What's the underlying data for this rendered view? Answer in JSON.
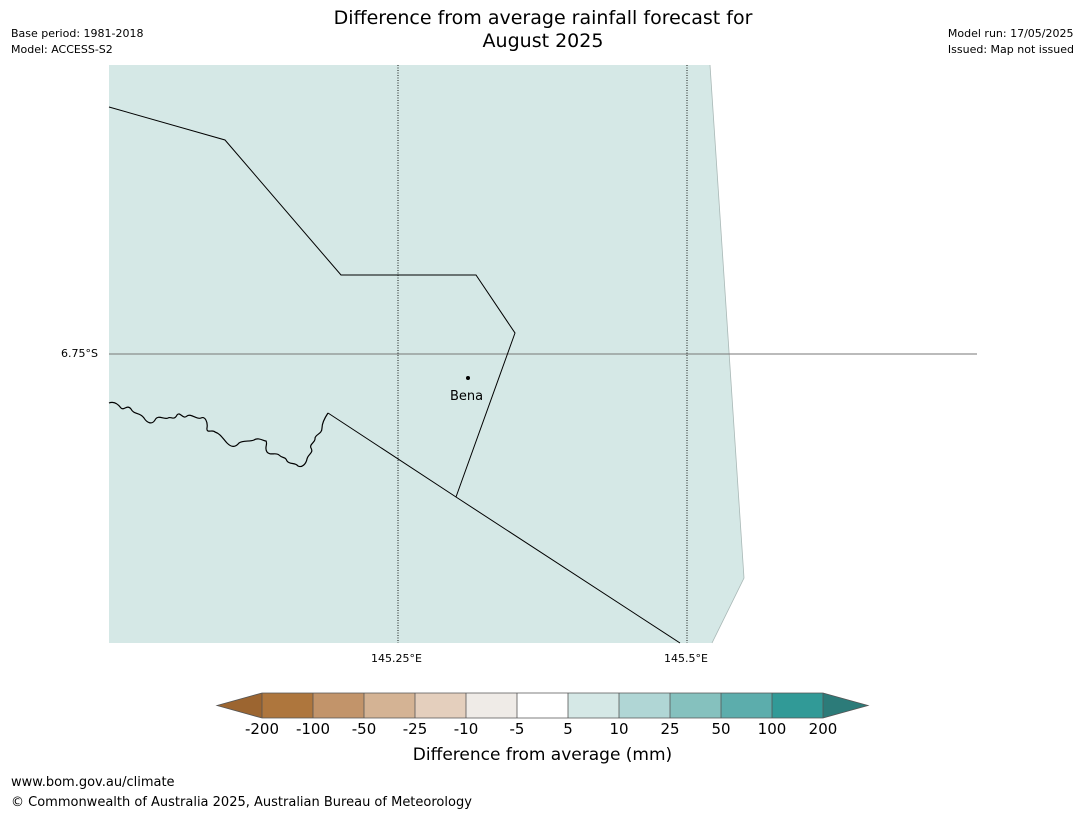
{
  "title": {
    "line1": "Difference from average rainfall forecast for",
    "line2": "August 2025"
  },
  "meta_left": {
    "base_period": "Base period: 1981-2018",
    "model": "Model: ACCESS-S2"
  },
  "meta_right": {
    "model_run": "Model run: 17/05/2025",
    "issued": "Issued: Map not issued"
  },
  "map": {
    "latitude_label": "6.75°S",
    "longitude_labels": [
      "145.25°E",
      "145.5°E"
    ],
    "place_label": "Bena",
    "land_fill_color": "#d5e8e6",
    "gridline_style": "dotted",
    "place_marker": "dot"
  },
  "colorbar": {
    "label": "Difference from average (mm)",
    "ticks": [
      "-200",
      "-100",
      "-50",
      "-25",
      "-10",
      "-5",
      "5",
      "10",
      "25",
      "50",
      "100",
      "200"
    ],
    "colors": [
      "#9c6530",
      "#ae763d",
      "#c2946a",
      "#d4b394",
      "#e4cfbd",
      "#efebe7",
      "#ffffff",
      "#d5e8e6",
      "#b0d6d5",
      "#85c1be",
      "#5cadac",
      "#319a97",
      "#2c7b79"
    ],
    "extend": "both"
  },
  "footer": {
    "url": "www.bom.gov.au/climate",
    "copyright": "© Commonwealth of Australia 2025, Australian Bureau of Meteorology"
  }
}
